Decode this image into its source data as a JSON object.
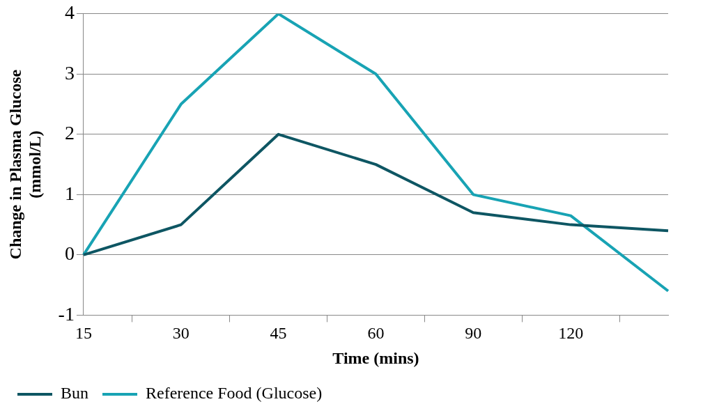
{
  "chart_data": {
    "type": "line",
    "xlabel": "Time (mins)",
    "ylabel": "Change in Plasma Glucose\n(mmol/L)",
    "categories": [
      "15",
      "30",
      "45",
      "60",
      "90",
      "120",
      null
    ],
    "series": [
      {
        "name": "Bun",
        "color": "#0e5663",
        "values": [
          0,
          0.5,
          2,
          1.5,
          0.7,
          0.5,
          0.4
        ]
      },
      {
        "name": "Reference Food (Glucose)",
        "color": "#18a3b4",
        "values": [
          0,
          2.5,
          4,
          3,
          1,
          0.65,
          -0.6
        ]
      }
    ],
    "ylim": [
      -1,
      4
    ],
    "yticks": [
      -1,
      0,
      1,
      2,
      3,
      4
    ],
    "grid": "y",
    "legend": "bottom",
    "marker": "none",
    "line_style": "solid"
  }
}
